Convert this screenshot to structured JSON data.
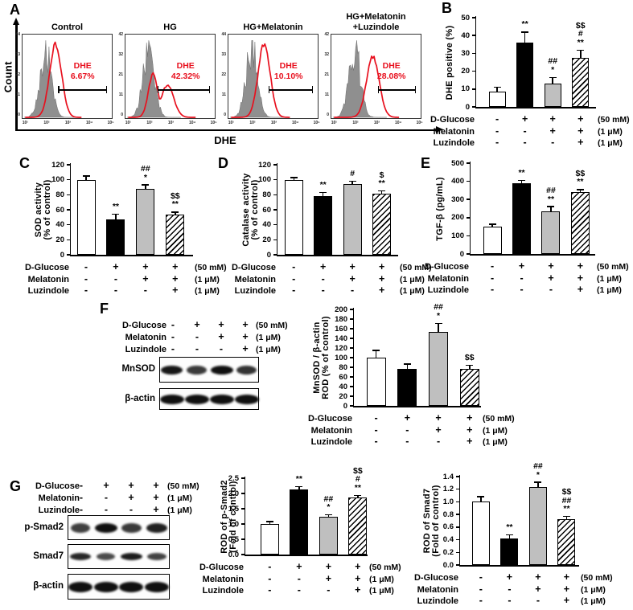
{
  "figure": {
    "background": "#ffffff"
  },
  "colors": {
    "red": "#e8101e",
    "gray_bar": "#bfbfbf",
    "hist_gray": "#8f8f8f",
    "black": "#000000"
  },
  "bar_styles": [
    "white",
    "black",
    "gray",
    "hatch"
  ],
  "treatments": {
    "rows": [
      {
        "label": "D-Glucose",
        "values": [
          "-",
          "+",
          "+",
          "+"
        ],
        "conc": "(50 mM)"
      },
      {
        "label": "Melatonin",
        "values": [
          "-",
          "-",
          "+",
          "+"
        ],
        "conc": "(1 μM)"
      },
      {
        "label": "Luzindole",
        "values": [
          "-",
          "-",
          "-",
          "+"
        ],
        "conc": "(1 μM)"
      }
    ]
  },
  "panel_a": {
    "label": "A",
    "xlabel": "DHE",
    "ylabel": "Count",
    "x_ticks": [
      "10¹",
      "10²",
      "10³",
      "10⁴",
      "10⁵"
    ],
    "plots": [
      {
        "title_lines": [
          "Control"
        ],
        "gate_label": "DHE",
        "gate_percent": "6.67%",
        "y_ticks": [
          "44",
          "33",
          "22",
          "11",
          "0"
        ],
        "red_peak": 0.37,
        "red_spread": 0.095,
        "red_height": 0.93,
        "gate_start": 0.4
      },
      {
        "title_lines": [
          "HG"
        ],
        "gate_label": "DHE",
        "gate_percent": "42.32%",
        "y_ticks": [
          "42",
          "32",
          "21",
          "11",
          "0"
        ],
        "red_peak": 0.31,
        "red_spread": 0.075,
        "red_height": 0.54,
        "tail_peak": 0.47,
        "tail_spread": 0.1,
        "tail_height": 0.4,
        "gate_start": 0.36
      },
      {
        "title_lines": [
          "HG+Melatonin"
        ],
        "gate_label": "DHE",
        "gate_percent": "10.10%",
        "y_ticks": [
          "44",
          "33",
          "22",
          "11",
          "0"
        ],
        "red_peak": 0.4,
        "red_spread": 0.095,
        "red_height": 0.93,
        "gate_start": 0.45
      },
      {
        "title_lines": [
          "HG+Melatonin",
          "+Luzindole"
        ],
        "gate_label": "DHE",
        "gate_percent": "28.08%",
        "y_ticks": [
          "42",
          "32",
          "21",
          "11",
          "0"
        ],
        "red_peak": 0.465,
        "red_spread": 0.1,
        "red_height": 0.76,
        "gate_start": 0.52
      }
    ]
  },
  "panel_f": {
    "label": "F",
    "blots": [
      {
        "label": "MnSOD",
        "intensities": [
          0.95,
          0.65,
          1.0,
          0.7
        ]
      },
      {
        "label": "β-actin",
        "intensities": [
          1,
          1,
          1,
          1
        ]
      }
    ]
  },
  "panel_g": {
    "label": "G",
    "blots": [
      {
        "label": "p-Smad2",
        "intensities": [
          0.6,
          1.0,
          0.65,
          0.85
        ]
      },
      {
        "label": "Smad7",
        "intensities": [
          0.8,
          0.5,
          0.9,
          0.55
        ]
      },
      {
        "label": "β-actin",
        "intensities": [
          1,
          1,
          1,
          1
        ]
      }
    ]
  },
  "chart_data": [
    {
      "id": "B",
      "panel_label": "B",
      "type": "bar",
      "ylabel_lines": [
        "DHE positive (%)"
      ],
      "categories": [
        "Control",
        "HG",
        "HG+Melatonin",
        "HG+Melatonin+Luzindole"
      ],
      "values": [
        8.5,
        36,
        13,
        27.3
      ],
      "errors": [
        2.5,
        6,
        3.5,
        4.5
      ],
      "ylim": [
        0,
        50
      ],
      "ystep": 10,
      "decimals": 0,
      "annotations": [
        [],
        [
          "**"
        ],
        [
          "##",
          "*"
        ],
        [
          "$$",
          "#",
          "**"
        ]
      ]
    },
    {
      "id": "C",
      "panel_label": "C",
      "type": "bar",
      "ylabel_lines": [
        "SOD activity",
        "(% of control)"
      ],
      "categories": [
        "Control",
        "HG",
        "HG+Melatonin",
        "HG+Melatonin+Luzindole"
      ],
      "values": [
        100,
        47,
        88,
        54
      ],
      "errors": [
        5,
        7,
        5,
        3
      ],
      "ylim": [
        0,
        120
      ],
      "ystep": 20,
      "decimals": 0,
      "annotations": [
        [],
        [
          "**"
        ],
        [
          "##",
          "*"
        ],
        [
          "$$",
          "**"
        ]
      ]
    },
    {
      "id": "D",
      "panel_label": "D",
      "type": "bar",
      "ylabel_lines": [
        "Catalase activity",
        "(% of control)"
      ],
      "categories": [
        "Control",
        "HG",
        "HG+Melatonin",
        "HG+Melatonin+Luzindole"
      ],
      "values": [
        100,
        78,
        94,
        81
      ],
      "errors": [
        3,
        5,
        4,
        4
      ],
      "ylim": [
        0,
        120
      ],
      "ystep": 20,
      "decimals": 0,
      "annotations": [
        [],
        [
          "**"
        ],
        [
          "#"
        ],
        [
          "$",
          "**"
        ]
      ]
    },
    {
      "id": "E",
      "panel_label": "E",
      "type": "bar",
      "ylabel_lines": [
        "TGF-β (pg/mL)"
      ],
      "categories": [
        "Control",
        "HG",
        "HG+Melatonin",
        "HG+Melatonin+Luzindole"
      ],
      "values": [
        152,
        390,
        235,
        340
      ],
      "errors": [
        12,
        15,
        25,
        15
      ],
      "ylim": [
        0,
        500
      ],
      "ystep": 100,
      "decimals": 0,
      "annotations": [
        [],
        [
          "**"
        ],
        [
          "##",
          "**"
        ],
        [
          "$$",
          "**"
        ]
      ]
    },
    {
      "id": "F",
      "panel_label": "F",
      "type": "bar",
      "ylabel_lines": [
        "MnSOD / β-actin",
        "ROD (% of control)"
      ],
      "categories": [
        "Control",
        "HG",
        "HG+Melatonin",
        "HG+Melatonin+Luzindole"
      ],
      "values": [
        100,
        77,
        153,
        76
      ],
      "errors": [
        15,
        10,
        18,
        8
      ],
      "ylim": [
        0,
        200
      ],
      "ystep": 20,
      "decimals": 0,
      "annotations": [
        [],
        [],
        [
          "##",
          "*"
        ],
        [
          "$$"
        ]
      ]
    },
    {
      "id": "G1",
      "panel_label": "G",
      "type": "bar",
      "ylabel_lines": [
        "ROD of p-Smad2",
        "(Fold of control)"
      ],
      "categories": [
        "Control",
        "HG",
        "HG+Melatonin",
        "HG+Melatonin+Luzindole"
      ],
      "values": [
        1.0,
        2.12,
        1.24,
        1.87
      ],
      "errors": [
        0.08,
        0.1,
        0.06,
        0.07
      ],
      "ylim": [
        0,
        2.5
      ],
      "ystep": 0.5,
      "decimals": 1,
      "annotations": [
        [],
        [
          "**"
        ],
        [
          "##",
          "*"
        ],
        [
          "$$",
          "#",
          "**"
        ]
      ]
    },
    {
      "id": "G2",
      "panel_label": "G",
      "type": "bar",
      "ylabel_lines": [
        "ROD of Smad7",
        "(Fold of control)"
      ],
      "categories": [
        "Control",
        "HG",
        "HG+Melatonin",
        "HG+Melatonin+Luzindole"
      ],
      "values": [
        1.0,
        0.42,
        1.23,
        0.72
      ],
      "errors": [
        0.08,
        0.06,
        0.08,
        0.05
      ],
      "ylim": [
        0,
        1.4
      ],
      "ystep": 0.2,
      "decimals": 1,
      "annotations": [
        [],
        [
          "**"
        ],
        [
          "##",
          "*"
        ],
        [
          "$$",
          "##",
          "**"
        ]
      ]
    }
  ]
}
